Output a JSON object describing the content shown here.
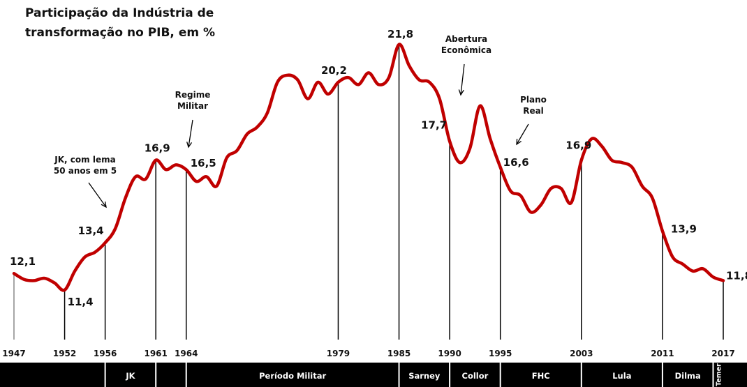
{
  "chart_data": {
    "type": "line",
    "title_lines": [
      "Participação da Indústria de",
      "transformação no PIB, em %"
    ],
    "series": [
      {
        "color": "#c00000",
        "points": [
          [
            1947,
            12.1
          ],
          [
            1948,
            11.85
          ],
          [
            1949,
            11.8
          ],
          [
            1950,
            11.9
          ],
          [
            1951,
            11.7
          ],
          [
            1952,
            11.4
          ],
          [
            1953,
            12.2
          ],
          [
            1954,
            12.8
          ],
          [
            1955,
            13.0
          ],
          [
            1956,
            13.4
          ],
          [
            1957,
            14.0
          ],
          [
            1958,
            15.3
          ],
          [
            1959,
            16.2
          ],
          [
            1960,
            16.1
          ],
          [
            1961,
            16.9
          ],
          [
            1962,
            16.5
          ],
          [
            1963,
            16.7
          ],
          [
            1964,
            16.5
          ],
          [
            1965,
            16.0
          ],
          [
            1966,
            16.2
          ],
          [
            1967,
            15.8
          ],
          [
            1968,
            17.0
          ],
          [
            1969,
            17.3
          ],
          [
            1970,
            18.0
          ],
          [
            1971,
            18.3
          ],
          [
            1972,
            18.9
          ],
          [
            1973,
            20.2
          ],
          [
            1974,
            20.5
          ],
          [
            1975,
            20.3
          ],
          [
            1976,
            19.5
          ],
          [
            1977,
            20.2
          ],
          [
            1978,
            19.7
          ],
          [
            1979,
            20.2
          ],
          [
            1980,
            20.4
          ],
          [
            1981,
            20.1
          ],
          [
            1982,
            20.6
          ],
          [
            1983,
            20.1
          ],
          [
            1984,
            20.4
          ],
          [
            1985,
            21.8
          ],
          [
            1986,
            20.9
          ],
          [
            1987,
            20.3
          ],
          [
            1988,
            20.2
          ],
          [
            1989,
            19.5
          ],
          [
            1990,
            17.7
          ],
          [
            1991,
            16.8
          ],
          [
            1992,
            17.4
          ],
          [
            1993,
            19.2
          ],
          [
            1994,
            17.8
          ],
          [
            1995,
            16.6
          ],
          [
            1996,
            15.6
          ],
          [
            1997,
            15.4
          ],
          [
            1998,
            14.7
          ],
          [
            1999,
            15.0
          ],
          [
            2000,
            15.7
          ],
          [
            2001,
            15.7
          ],
          [
            2002,
            15.1
          ],
          [
            2003,
            16.9
          ],
          [
            2004,
            17.8
          ],
          [
            2005,
            17.5
          ],
          [
            2006,
            16.9
          ],
          [
            2007,
            16.8
          ],
          [
            2008,
            16.6
          ],
          [
            2009,
            15.8
          ],
          [
            2010,
            15.3
          ],
          [
            2011,
            13.9
          ],
          [
            2012,
            12.8
          ],
          [
            2013,
            12.5
          ],
          [
            2014,
            12.2
          ],
          [
            2015,
            12.3
          ],
          [
            2016,
            11.95
          ],
          [
            2017,
            11.8
          ]
        ]
      }
    ],
    "xlim": [
      1947,
      2017
    ],
    "ylim": [
      9.3,
      22.0
    ],
    "ticks": [
      {
        "year": "1947",
        "value": "12,1",
        "v": 12.1
      },
      {
        "year": "1952",
        "value": "11,4",
        "v": 11.4
      },
      {
        "year": "1956",
        "value": "13,4",
        "v": 13.4
      },
      {
        "year": "1961",
        "value": "16,9",
        "v": 16.9
      },
      {
        "year": "1964",
        "value": "16,5",
        "v": 16.5
      },
      {
        "year": "1979",
        "value": "20,2",
        "v": 20.2
      },
      {
        "year": "1985",
        "value": "21,8",
        "v": 21.8
      },
      {
        "year": "1990",
        "value": "17,7",
        "v": 17.7
      },
      {
        "year": "1995",
        "value": "16,6",
        "v": 16.6
      },
      {
        "year": "2003",
        "value": "16,9",
        "v": 16.9
      },
      {
        "year": "2011",
        "value": "13,9",
        "v": 13.9
      },
      {
        "year": "2017",
        "value": "11,8",
        "v": 11.8
      }
    ],
    "annotations": [
      {
        "lines": [
          "JK, com lema",
          "50 anos em 5"
        ],
        "year": 1955.4
      },
      {
        "lines": [
          "Regime",
          "Militar"
        ],
        "year": 1964.5
      },
      {
        "lines": [
          "Abertura",
          "Econômica"
        ],
        "year": 1991.2
      },
      {
        "lines": [
          "Plano",
          "Real"
        ],
        "year": 1996.6
      }
    ],
    "periods": [
      {
        "label": "",
        "start": 1947,
        "end": 1956
      },
      {
        "label": "JK",
        "start": 1956,
        "end": 1961
      },
      {
        "label": "",
        "start": 1961,
        "end": 1964
      },
      {
        "label": "Período Militar",
        "start": 1964,
        "end": 1985
      },
      {
        "label": "Sarney",
        "start": 1985,
        "end": 1990
      },
      {
        "label": "Collor",
        "start": 1990,
        "end": 1995
      },
      {
        "label": "FHC",
        "start": 1995,
        "end": 2003
      },
      {
        "label": "Lula",
        "start": 2003,
        "end": 2011
      },
      {
        "label": "Dilma",
        "start": 2011,
        "end": 2016
      },
      {
        "label": "Temer",
        "start": 2016,
        "end": 2017
      }
    ]
  }
}
